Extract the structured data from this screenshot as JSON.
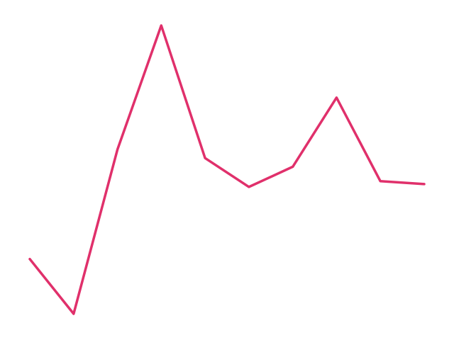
{
  "chart_data": {
    "type": "line",
    "title": "",
    "xlabel": "",
    "ylabel": "",
    "grid": false,
    "legend": "none",
    "axes_visible": false,
    "x": [
      1,
      2,
      3,
      4,
      5,
      6,
      7,
      8,
      9,
      10
    ],
    "series": [
      {
        "color": "#E0306B",
        "values": [
          1.9,
          0.0,
          5.7,
          10.0,
          5.4,
          4.4,
          5.1,
          7.5,
          4.6,
          4.5
        ]
      }
    ],
    "ylim": [
      0,
      10
    ]
  }
}
